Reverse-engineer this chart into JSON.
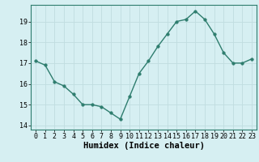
{
  "x": [
    0,
    1,
    2,
    3,
    4,
    5,
    6,
    7,
    8,
    9,
    10,
    11,
    12,
    13,
    14,
    15,
    16,
    17,
    18,
    19,
    20,
    21,
    22,
    23
  ],
  "y": [
    17.1,
    16.9,
    16.1,
    15.9,
    15.5,
    15.0,
    15.0,
    14.9,
    14.6,
    14.3,
    15.4,
    16.5,
    17.1,
    17.8,
    18.4,
    19.0,
    19.1,
    19.5,
    19.1,
    18.4,
    17.5,
    17.0,
    17.0,
    17.2
  ],
  "xlabel": "Humidex (Indice chaleur)",
  "ylim": [
    13.8,
    19.8
  ],
  "xlim": [
    -0.5,
    23.5
  ],
  "yticks": [
    14,
    15,
    16,
    17,
    18,
    19
  ],
  "xticks": [
    0,
    1,
    2,
    3,
    4,
    5,
    6,
    7,
    8,
    9,
    10,
    11,
    12,
    13,
    14,
    15,
    16,
    17,
    18,
    19,
    20,
    21,
    22,
    23
  ],
  "line_color": "#2e7d6e",
  "marker_color": "#2e7d6e",
  "bg_color": "#d6eff2",
  "grid_color": "#c0dde0",
  "tick_label_fontsize": 6.0,
  "xlabel_fontsize": 7.5
}
